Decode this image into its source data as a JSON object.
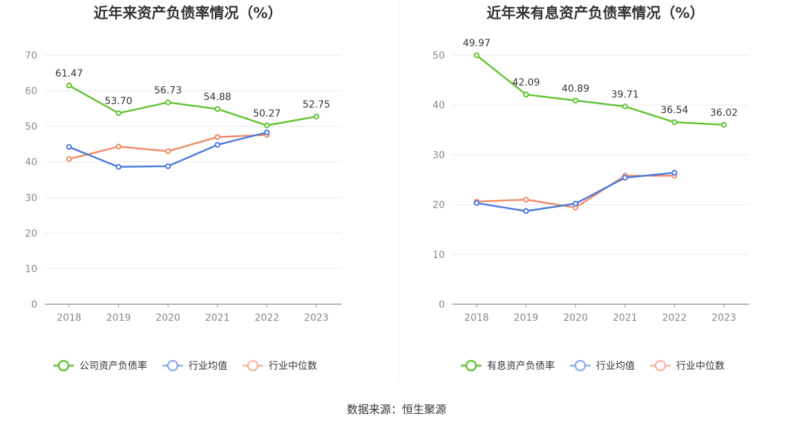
{
  "source": "数据来源：恒生聚源",
  "colors": {
    "green": "#5ec330",
    "blue": "#4a78de",
    "orange": "#f08a66"
  },
  "chart_data": [
    {
      "type": "line",
      "title": "近年来资产负债率情况（%）",
      "categories": [
        "2018",
        "2019",
        "2020",
        "2021",
        "2022",
        "2023"
      ],
      "ylim": [
        0,
        70
      ],
      "yticks": [
        0,
        10,
        20,
        30,
        40,
        50,
        60,
        70
      ],
      "grid": true,
      "legend_position": "bottom",
      "series": [
        {
          "name": "公司资产负债率",
          "color": "#5ec330",
          "show_labels": true,
          "values": [
            61.47,
            53.7,
            56.73,
            54.88,
            50.27,
            52.75
          ]
        },
        {
          "name": "行业均值",
          "color": "#4a78de",
          "show_labels": false,
          "values": [
            44.2,
            38.6,
            38.8,
            44.8,
            48.3,
            null
          ]
        },
        {
          "name": "行业中位数",
          "color": "#f08a66",
          "show_labels": false,
          "values": [
            40.8,
            44.3,
            43.0,
            47.0,
            47.6,
            null
          ]
        }
      ]
    },
    {
      "type": "line",
      "title": "近年来有息资产负债率情况（%）",
      "categories": [
        "2018",
        "2019",
        "2020",
        "2021",
        "2022",
        "2023"
      ],
      "ylim": [
        0,
        50
      ],
      "yticks": [
        0,
        10,
        20,
        30,
        40,
        50
      ],
      "grid": true,
      "legend_position": "bottom",
      "series": [
        {
          "name": "有息资产负债率",
          "color": "#5ec330",
          "show_labels": true,
          "values": [
            49.97,
            42.09,
            40.89,
            39.71,
            36.54,
            36.02
          ]
        },
        {
          "name": "行业均值",
          "color": "#4a78de",
          "show_labels": false,
          "values": [
            20.3,
            18.7,
            20.2,
            25.4,
            26.4,
            null
          ]
        },
        {
          "name": "行业中位数",
          "color": "#f08a66",
          "show_labels": false,
          "values": [
            20.6,
            21.0,
            19.4,
            25.8,
            25.8,
            null
          ]
        }
      ]
    }
  ]
}
